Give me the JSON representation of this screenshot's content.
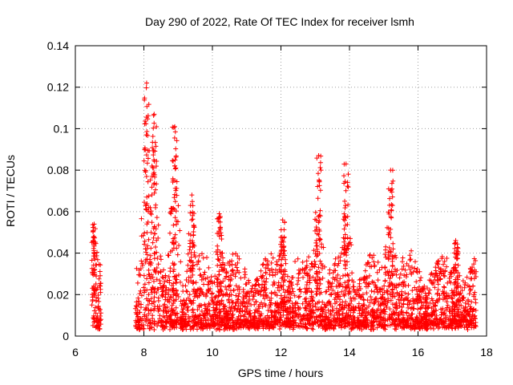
{
  "chart_data": {
    "type": "scatter",
    "title": "Day 290 of 2022, Rate Of TEC Index for receiver lsmh",
    "xlabel": "GPS time / hours",
    "ylabel": "ROTI / TECUs",
    "xlim": [
      6,
      18
    ],
    "ylim": [
      0,
      0.14
    ],
    "x_ticks": [
      "6",
      "8",
      "10",
      "12",
      "14",
      "16",
      "18"
    ],
    "y_ticks": [
      "0",
      "0.02",
      "0.04",
      "0.06",
      "0.08",
      "0.1",
      "0.12",
      "0.14"
    ],
    "grid": true,
    "marker": "+",
    "series": [
      {
        "name": "ROTI",
        "color": "#ff0000",
        "x_range": [
          6.5,
          17.7
        ],
        "data_gap": [
          6.75,
          7.75
        ],
        "typical_range": [
          0.005,
          0.04
        ],
        "peaks": [
          {
            "x": 6.55,
            "y": 0.054
          },
          {
            "x": 8.08,
            "y": 0.122
          },
          {
            "x": 8.3,
            "y": 0.107
          },
          {
            "x": 8.9,
            "y": 0.101
          },
          {
            "x": 9.4,
            "y": 0.068
          },
          {
            "x": 10.2,
            "y": 0.059
          },
          {
            "x": 12.05,
            "y": 0.056
          },
          {
            "x": 13.1,
            "y": 0.087
          },
          {
            "x": 13.9,
            "y": 0.083
          },
          {
            "x": 15.2,
            "y": 0.08
          },
          {
            "x": 17.1,
            "y": 0.045
          }
        ]
      }
    ]
  }
}
